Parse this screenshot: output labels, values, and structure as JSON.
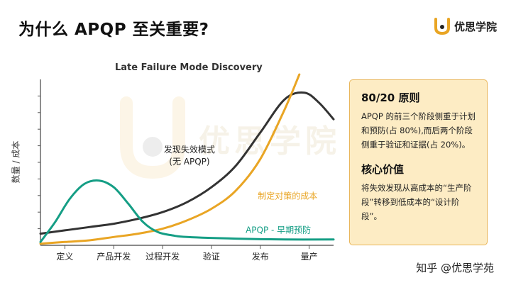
{
  "page_title": "为什么 APQP 至关重要?",
  "brand": {
    "name": "优思学院",
    "logo_icon": "u-logo-icon"
  },
  "watermark_text": "优思学院",
  "footer_watermark": "知乎 @优思学苑",
  "colors": {
    "orange": "#e9a524",
    "teal": "#159e85",
    "dark": "#333333",
    "panel_bg": "#fdecc4",
    "panel_border": "#e9b65a"
  },
  "panel": {
    "heading1": "80/20 原则",
    "text1": "APQP 的前三个阶段侧重于计划和预防(占 80%),而后两个阶段侧重于验证和证据(占 20%)。",
    "heading2": "核心价值",
    "text2": "将失效发现从高成本的“生产阶段”转移到低成本的“设计阶段”。"
  },
  "chart_data": {
    "type": "line",
    "title": "Late Failure Mode Discovery",
    "ylabel": "数量 / 成本",
    "xlabel": "",
    "categories": [
      "定义",
      "产品开发",
      "过程开发",
      "验证",
      "发布",
      "量产"
    ],
    "x_range": [
      0,
      6
    ],
    "ylim": [
      0,
      100
    ],
    "y_tick_labels": false,
    "grid": false,
    "series": [
      {
        "name": "发现失效模式(无 APQP)",
        "color": "#333333",
        "x": [
          0,
          0.5,
          1,
          1.5,
          2,
          2.5,
          3,
          3.5,
          4,
          4.5,
          5,
          5.4,
          5.7,
          6
        ],
        "y": [
          7,
          9,
          11,
          13,
          16,
          20,
          26,
          35,
          48,
          68,
          88,
          92,
          86,
          76
        ]
      },
      {
        "name": "制定对策的成本",
        "color": "#e9a524",
        "x": [
          0,
          0.5,
          1,
          1.5,
          2,
          2.5,
          3,
          3.5,
          4,
          4.5,
          5,
          5.3
        ],
        "y": [
          1,
          2,
          3,
          5,
          7,
          10,
          15,
          22,
          33,
          52,
          82,
          103
        ]
      },
      {
        "name": "APQP - 早期预防",
        "color": "#159e85",
        "x": [
          0,
          0.3,
          0.6,
          0.9,
          1.2,
          1.5,
          1.8,
          2.1,
          2.4,
          2.7,
          3,
          4,
          5,
          6
        ],
        "y": [
          2,
          14,
          28,
          37,
          39,
          35,
          25,
          14,
          8,
          6,
          5,
          4,
          3.5,
          3.5
        ]
      }
    ]
  }
}
